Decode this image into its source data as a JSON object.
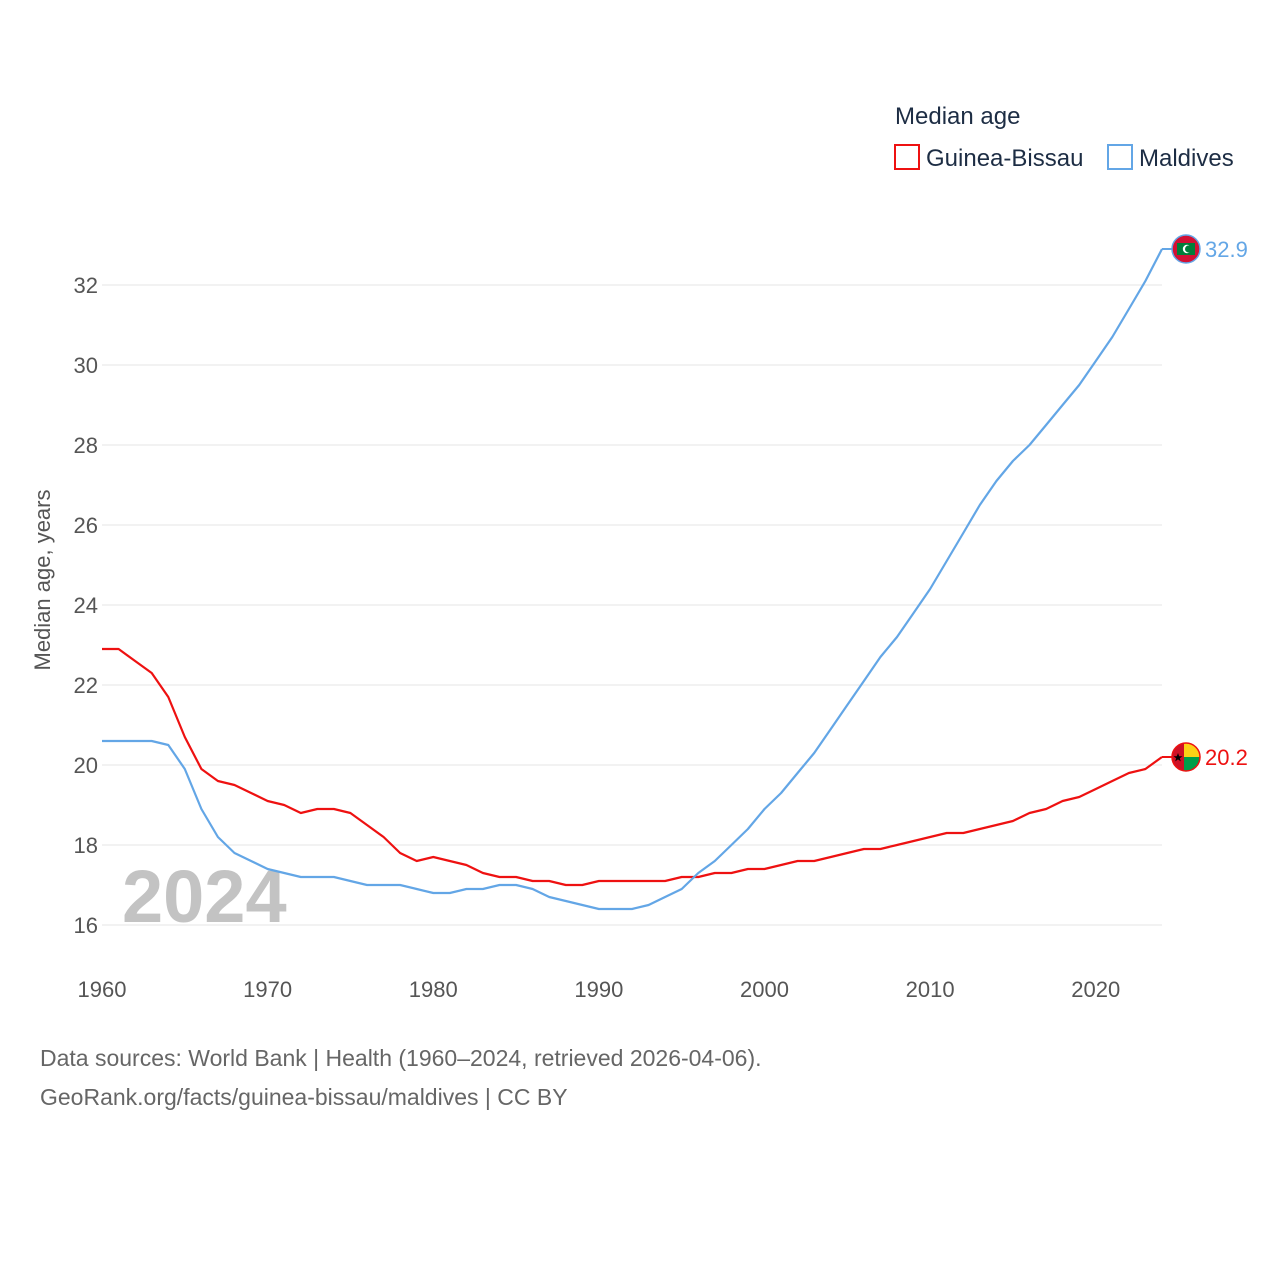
{
  "chart_data": {
    "type": "line",
    "legend_title": "Median age",
    "ylabel": "Median age, years",
    "xlabel": "",
    "xlim": [
      1960,
      2024
    ],
    "ylim": [
      15,
      33.5
    ],
    "x_ticks": [
      1960,
      1970,
      1980,
      1990,
      2000,
      2010,
      2020
    ],
    "y_ticks": [
      16,
      18,
      20,
      22,
      24,
      26,
      28,
      30,
      32
    ],
    "current_year_label": "2024",
    "legend_position": "top-right",
    "x": [
      1960,
      1961,
      1962,
      1963,
      1964,
      1965,
      1966,
      1967,
      1968,
      1969,
      1970,
      1971,
      1972,
      1973,
      1974,
      1975,
      1976,
      1977,
      1978,
      1979,
      1980,
      1981,
      1982,
      1983,
      1984,
      1985,
      1986,
      1987,
      1988,
      1989,
      1990,
      1991,
      1992,
      1993,
      1994,
      1995,
      1996,
      1997,
      1998,
      1999,
      2000,
      2001,
      2002,
      2003,
      2004,
      2005,
      2006,
      2007,
      2008,
      2009,
      2010,
      2011,
      2012,
      2013,
      2014,
      2015,
      2016,
      2017,
      2018,
      2019,
      2020,
      2021,
      2022,
      2023,
      2024
    ],
    "series": [
      {
        "name": "Guinea-Bissau",
        "color": "#ee1111",
        "end_label": "20.2",
        "flag": "guinea-bissau-flag-icon",
        "values": [
          22.9,
          22.9,
          22.6,
          22.3,
          21.7,
          20.7,
          19.9,
          19.6,
          19.5,
          19.3,
          19.1,
          19.0,
          18.8,
          18.9,
          18.9,
          18.8,
          18.5,
          18.2,
          17.8,
          17.6,
          17.7,
          17.6,
          17.5,
          17.3,
          17.2,
          17.2,
          17.1,
          17.1,
          17.0,
          17.0,
          17.1,
          17.1,
          17.1,
          17.1,
          17.1,
          17.2,
          17.2,
          17.3,
          17.3,
          17.4,
          17.4,
          17.5,
          17.6,
          17.6,
          17.7,
          17.8,
          17.9,
          17.9,
          18.0,
          18.1,
          18.2,
          18.3,
          18.3,
          18.4,
          18.5,
          18.6,
          18.8,
          18.9,
          19.1,
          19.2,
          19.4,
          19.6,
          19.8,
          19.9,
          20.2
        ]
      },
      {
        "name": "Maldives",
        "color": "#63a6e6",
        "end_label": "32.9",
        "flag": "maldives-flag-icon",
        "values": [
          20.6,
          20.6,
          20.6,
          20.6,
          20.5,
          19.9,
          18.9,
          18.2,
          17.8,
          17.6,
          17.4,
          17.3,
          17.2,
          17.2,
          17.2,
          17.1,
          17.0,
          17.0,
          17.0,
          16.9,
          16.8,
          16.8,
          16.9,
          16.9,
          17.0,
          17.0,
          16.9,
          16.7,
          16.6,
          16.5,
          16.4,
          16.4,
          16.4,
          16.5,
          16.7,
          16.9,
          17.3,
          17.6,
          18.0,
          18.4,
          18.9,
          19.3,
          19.8,
          20.3,
          20.9,
          21.5,
          22.1,
          22.7,
          23.2,
          23.8,
          24.4,
          25.1,
          25.8,
          26.5,
          27.1,
          27.6,
          28.0,
          28.5,
          29.0,
          29.5,
          30.1,
          30.7,
          31.4,
          32.1,
          32.9
        ]
      }
    ]
  },
  "footer": {
    "sources": "Data sources: World Bank | Health (1960–2024, retrieved 2026-04-06).",
    "credit": "GeoRank.org/facts/guinea-bissau/maldives | CC BY"
  }
}
